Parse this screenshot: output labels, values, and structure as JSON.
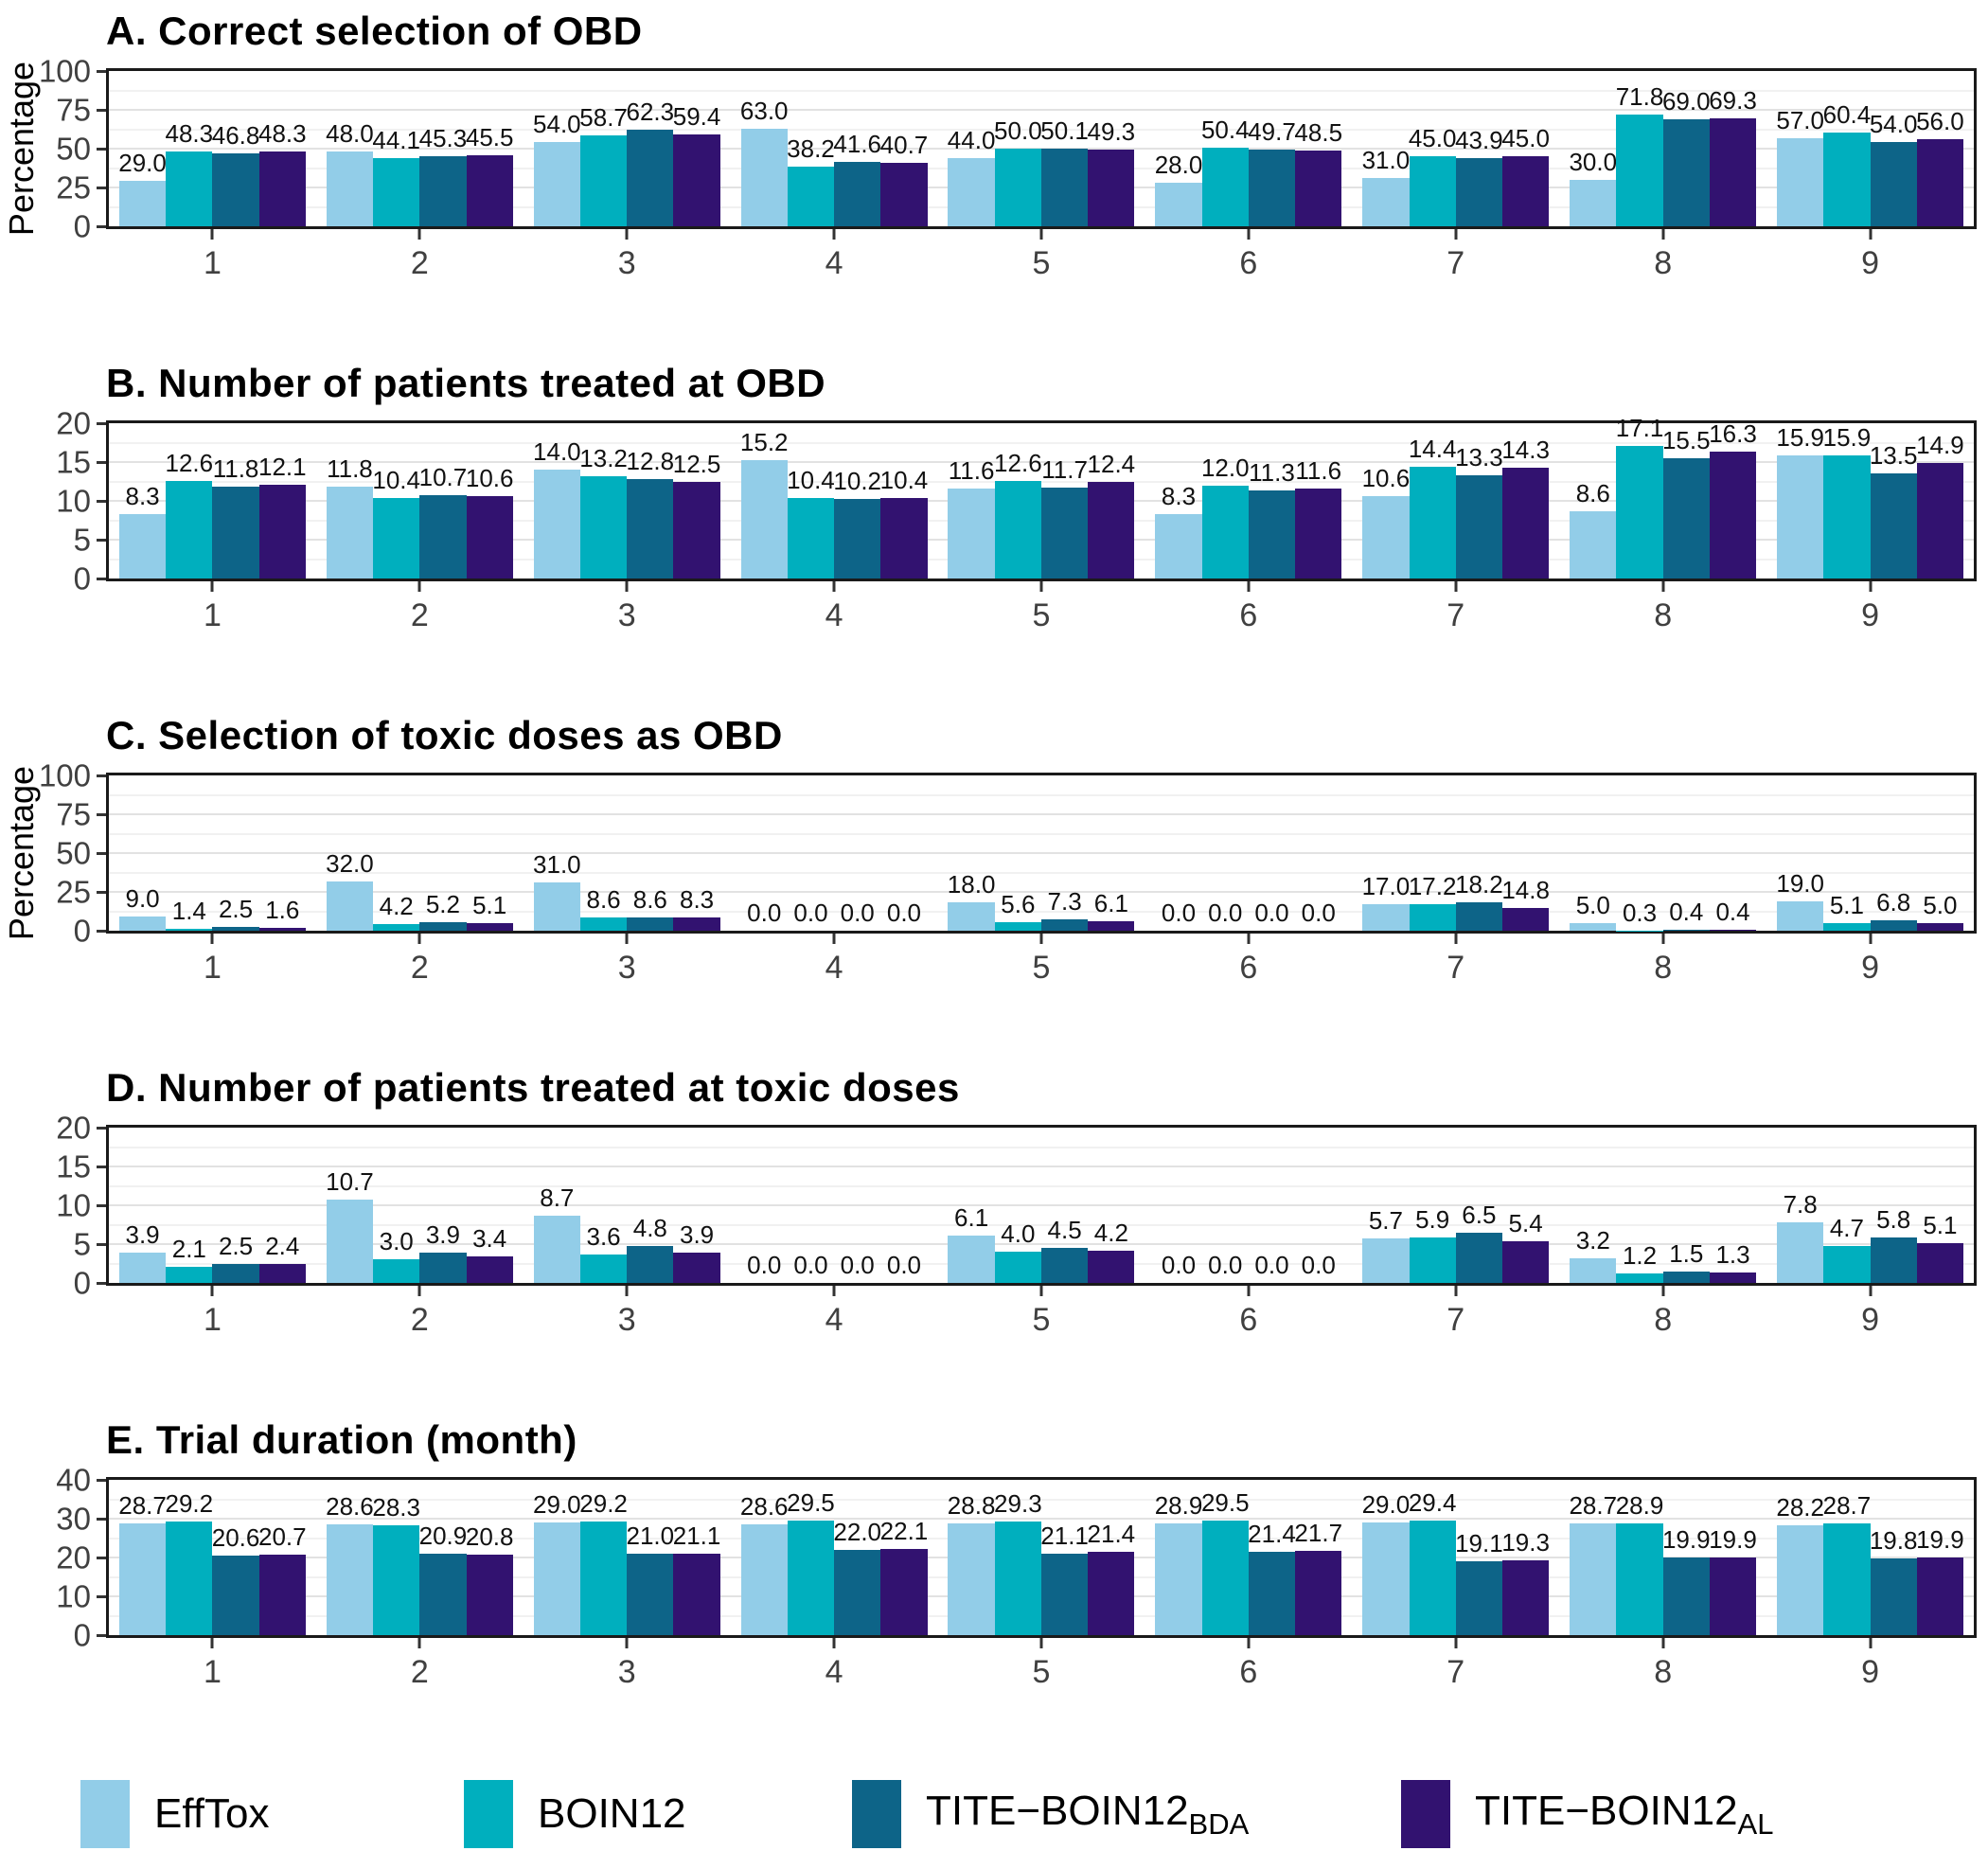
{
  "legend": {
    "items": [
      {
        "label": "EffTox",
        "subscript": "",
        "color": "#92CDE8"
      },
      {
        "label": "BOIN12",
        "subscript": "",
        "color": "#00AFBE"
      },
      {
        "label": "TITE−BOIN12",
        "subscript": "BDA",
        "color": "#0D6488"
      },
      {
        "label": "TITE−BOIN12",
        "subscript": "AL",
        "color": "#321270"
      }
    ]
  },
  "chart_data": [
    {
      "type": "bar",
      "title": "A. Correct selection of OBD",
      "xlabel": "",
      "ylabel": "Percentage",
      "ylim": [
        0,
        100
      ],
      "yticks": [
        0,
        25,
        50,
        75,
        100
      ],
      "grid": "major+minor",
      "legend_position": "bottom",
      "value_labels": true,
      "categories": [
        "1",
        "2",
        "3",
        "4",
        "5",
        "6",
        "7",
        "8",
        "9"
      ],
      "series": [
        {
          "name": "EffTox",
          "values": [
            29.0,
            48.0,
            54.0,
            63.0,
            44.0,
            28.0,
            31.0,
            30.0,
            57.0
          ]
        },
        {
          "name": "BOIN12",
          "values": [
            48.3,
            44.1,
            58.7,
            38.2,
            50.0,
            50.4,
            45.0,
            71.8,
            60.4
          ]
        },
        {
          "name": "TITE-BOIN12_BDA",
          "values": [
            46.8,
            45.3,
            62.3,
            41.6,
            50.1,
            49.7,
            43.9,
            69.0,
            54.0
          ]
        },
        {
          "name": "TITE-BOIN12_AL",
          "values": [
            48.3,
            45.5,
            59.4,
            40.7,
            49.3,
            48.5,
            45.0,
            69.3,
            56.0
          ]
        }
      ]
    },
    {
      "type": "bar",
      "title": "B. Number of patients treated at OBD",
      "xlabel": "",
      "ylabel": "",
      "ylim": [
        0,
        20
      ],
      "yticks": [
        0,
        5,
        10,
        15,
        20
      ],
      "grid": "major+minor",
      "legend_position": "bottom",
      "value_labels": true,
      "categories": [
        "1",
        "2",
        "3",
        "4",
        "5",
        "6",
        "7",
        "8",
        "9"
      ],
      "series": [
        {
          "name": "EffTox",
          "values": [
            8.3,
            11.8,
            14.0,
            15.2,
            11.6,
            8.3,
            10.6,
            8.6,
            15.9
          ]
        },
        {
          "name": "BOIN12",
          "values": [
            12.6,
            10.4,
            13.2,
            10.4,
            12.6,
            12.0,
            14.4,
            17.1,
            15.9
          ]
        },
        {
          "name": "TITE-BOIN12_BDA",
          "values": [
            11.8,
            10.7,
            12.8,
            10.2,
            11.7,
            11.3,
            13.3,
            15.5,
            13.5
          ]
        },
        {
          "name": "TITE-BOIN12_AL",
          "values": [
            12.1,
            10.6,
            12.5,
            10.4,
            12.4,
            11.6,
            14.3,
            16.3,
            14.9
          ]
        }
      ]
    },
    {
      "type": "bar",
      "title": "C. Selection of toxic doses as OBD",
      "xlabel": "",
      "ylabel": "Percentage",
      "ylim": [
        0,
        100
      ],
      "yticks": [
        0,
        25,
        50,
        75,
        100
      ],
      "grid": "major+minor",
      "legend_position": "bottom",
      "value_labels": true,
      "categories": [
        "1",
        "2",
        "3",
        "4",
        "5",
        "6",
        "7",
        "8",
        "9"
      ],
      "series": [
        {
          "name": "EffTox",
          "values": [
            9.0,
            32.0,
            31.0,
            0.0,
            18.0,
            0.0,
            17.0,
            5.0,
            19.0
          ]
        },
        {
          "name": "BOIN12",
          "values": [
            1.4,
            4.2,
            8.6,
            0.0,
            5.6,
            0.0,
            17.2,
            0.3,
            5.1
          ]
        },
        {
          "name": "TITE-BOIN12_BDA",
          "values": [
            2.5,
            5.2,
            8.6,
            0.0,
            7.3,
            0.0,
            18.2,
            0.4,
            6.8
          ]
        },
        {
          "name": "TITE-BOIN12_AL",
          "values": [
            1.6,
            5.1,
            8.3,
            0.0,
            6.1,
            0.0,
            14.8,
            0.4,
            5.0
          ]
        }
      ]
    },
    {
      "type": "bar",
      "title": "D. Number of patients treated at toxic doses",
      "xlabel": "",
      "ylabel": "",
      "ylim": [
        0,
        20
      ],
      "yticks": [
        0,
        5,
        10,
        15,
        20
      ],
      "grid": "major+minor",
      "legend_position": "bottom",
      "value_labels": true,
      "categories": [
        "1",
        "2",
        "3",
        "4",
        "5",
        "6",
        "7",
        "8",
        "9"
      ],
      "series": [
        {
          "name": "EffTox",
          "values": [
            3.9,
            10.7,
            8.7,
            0.0,
            6.1,
            0.0,
            5.7,
            3.2,
            7.8
          ]
        },
        {
          "name": "BOIN12",
          "values": [
            2.1,
            3.0,
            3.6,
            0.0,
            4.0,
            0.0,
            5.9,
            1.2,
            4.7
          ]
        },
        {
          "name": "TITE-BOIN12_BDA",
          "values": [
            2.5,
            3.9,
            4.8,
            0.0,
            4.5,
            0.0,
            6.5,
            1.5,
            5.8
          ]
        },
        {
          "name": "TITE-BOIN12_AL",
          "values": [
            2.4,
            3.4,
            3.9,
            0.0,
            4.2,
            0.0,
            5.4,
            1.3,
            5.1
          ]
        }
      ]
    },
    {
      "type": "bar",
      "title": "E. Trial duration (month)",
      "xlabel": "",
      "ylabel": "",
      "ylim": [
        0,
        40
      ],
      "yticks": [
        0,
        10,
        20,
        30,
        40
      ],
      "grid": "major+minor",
      "legend_position": "bottom",
      "value_labels": true,
      "categories": [
        "1",
        "2",
        "3",
        "4",
        "5",
        "6",
        "7",
        "8",
        "9"
      ],
      "series": [
        {
          "name": "EffTox",
          "values": [
            28.7,
            28.6,
            29.0,
            28.6,
            28.8,
            28.9,
            29.0,
            28.7,
            28.2
          ]
        },
        {
          "name": "BOIN12",
          "values": [
            29.2,
            28.3,
            29.2,
            29.5,
            29.3,
            29.5,
            29.4,
            28.9,
            28.7
          ]
        },
        {
          "name": "TITE-BOIN12_BDA",
          "values": [
            20.6,
            20.9,
            21.0,
            22.0,
            21.1,
            21.4,
            19.1,
            19.9,
            19.8
          ]
        },
        {
          "name": "TITE-BOIN12_AL",
          "values": [
            20.7,
            20.8,
            21.1,
            22.1,
            21.4,
            21.7,
            19.3,
            19.9,
            19.9
          ]
        }
      ]
    }
  ]
}
